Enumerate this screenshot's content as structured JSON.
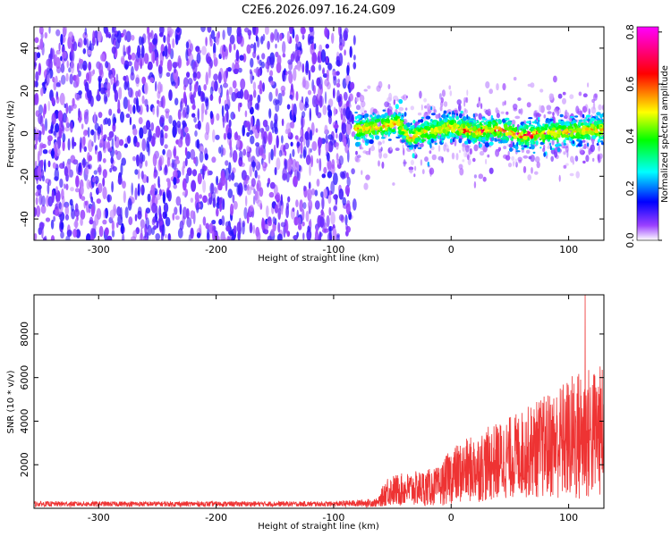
{
  "title": "C2E6.2026.097.16.24.G09",
  "chart_data": [
    {
      "type": "heatmap",
      "name": "spectrogram",
      "xlabel": "Height of straight line (km)",
      "ylabel": "Frequency (Hz)",
      "xlim": [
        -355,
        130
      ],
      "ylim": [
        -50,
        50
      ],
      "xticks": [
        -300,
        -200,
        -100,
        0,
        100
      ],
      "yticks": [
        -40,
        -20,
        0,
        20,
        40
      ],
      "noise_region_km": [
        -355,
        -82
      ],
      "signal_region_km": [
        -82,
        130
      ],
      "signal_center_hz": [
        {
          "x": -82,
          "y": 2
        },
        {
          "x": -60,
          "y": 3
        },
        {
          "x": -45,
          "y": 5
        },
        {
          "x": -35,
          "y": -2
        },
        {
          "x": -20,
          "y": 1
        },
        {
          "x": 0,
          "y": 3
        },
        {
          "x": 20,
          "y": 1
        },
        {
          "x": 40,
          "y": 2
        },
        {
          "x": 60,
          "y": -1
        },
        {
          "x": 80,
          "y": 0
        },
        {
          "x": 100,
          "y": 1
        },
        {
          "x": 130,
          "y": 2
        }
      ],
      "colorbar": {
        "label": "Normalized spectral amplitude",
        "range": [
          0.0,
          0.82
        ],
        "ticks": [
          "0.0",
          "0.2",
          "0.4",
          "0.6",
          "0.8"
        ],
        "colors": [
          "#ffffff",
          "#8000ff",
          "#0000ff",
          "#00ffff",
          "#00ff00",
          "#ffff00",
          "#ff0000",
          "#ff00ff"
        ]
      }
    },
    {
      "type": "line",
      "name": "snr",
      "xlabel": "Height of straight line (km)",
      "ylabel": "SNR (10 * v/v)",
      "xlim": [
        -355,
        130
      ],
      "ylim": [
        0,
        9800
      ],
      "xticks": [
        -300,
        -200,
        -100,
        0,
        100
      ],
      "yticks": [
        2000,
        4000,
        6000,
        8000
      ],
      "color": "#ee3333",
      "envelope": [
        {
          "x": -355,
          "mean": 200,
          "spread": 120
        },
        {
          "x": -100,
          "mean": 200,
          "spread": 120
        },
        {
          "x": -62,
          "mean": 260,
          "spread": 200
        },
        {
          "x": -55,
          "mean": 800,
          "spread": 700
        },
        {
          "x": -30,
          "mean": 900,
          "spread": 800
        },
        {
          "x": -10,
          "mean": 1000,
          "spread": 900
        },
        {
          "x": 0,
          "mean": 1500,
          "spread": 1300
        },
        {
          "x": 30,
          "mean": 2000,
          "spread": 1700
        },
        {
          "x": 60,
          "mean": 2500,
          "spread": 2000
        },
        {
          "x": 90,
          "mean": 3000,
          "spread": 2600
        },
        {
          "x": 110,
          "mean": 3300,
          "spread": 3200
        },
        {
          "x": 130,
          "mean": 3600,
          "spread": 3000
        }
      ],
      "peak": {
        "x": 114,
        "y": 9800
      }
    }
  ]
}
